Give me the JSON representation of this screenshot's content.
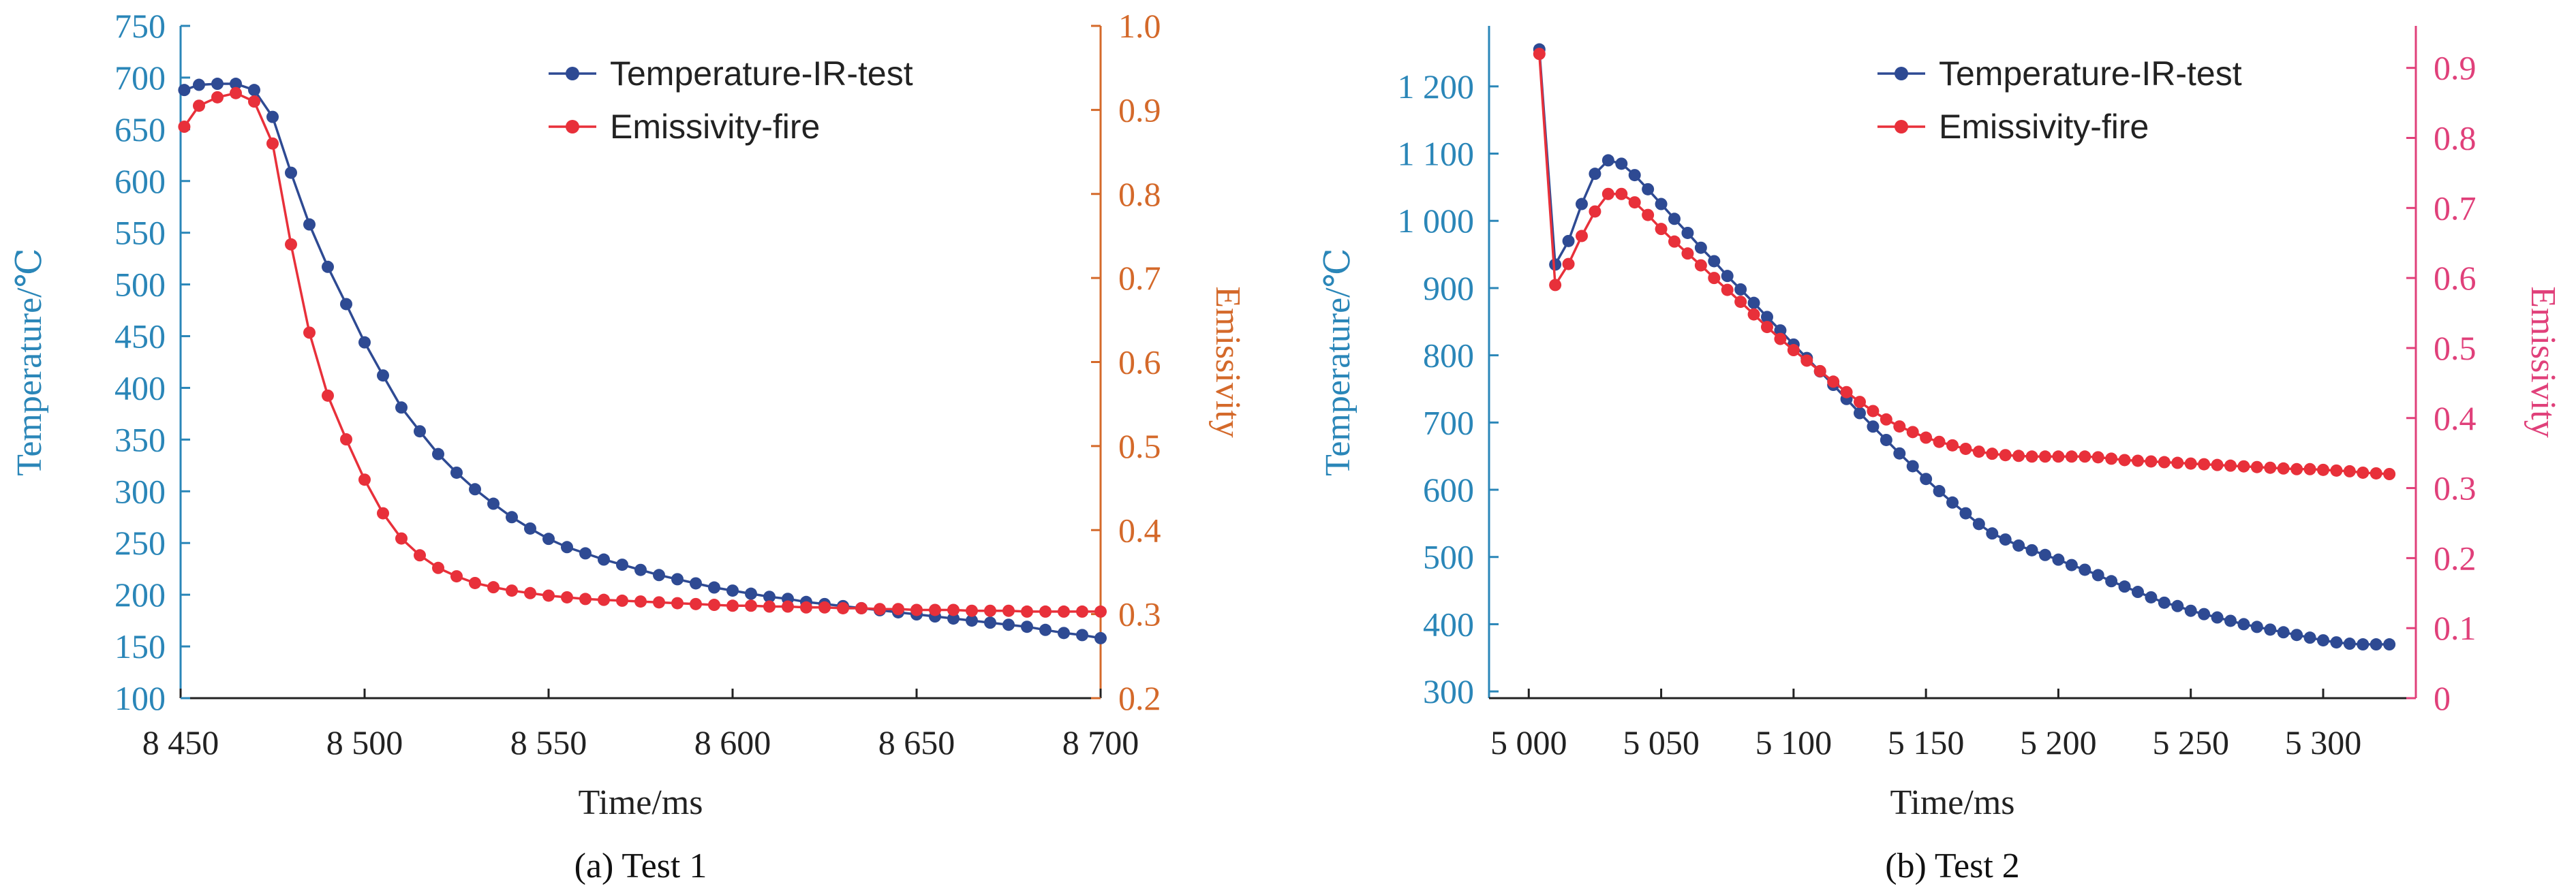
{
  "colors": {
    "temperature": "#2e4a93",
    "emissivity": "#e8303a",
    "left_axis": "#2a86b8",
    "right_axis_a": "#d4692a",
    "right_axis_b": "#e0407a"
  },
  "chart_data": [
    {
      "type": "line",
      "caption": "(a) Test 1",
      "xlabel": "Time/ms",
      "ylabel_left": "Temperature/℃",
      "ylabel_right": "Emissivity",
      "xlim": [
        8450,
        8700
      ],
      "ylim_left": [
        100,
        750
      ],
      "ylim_right": [
        0.2,
        1.0
      ],
      "x_ticks": [
        8450,
        8500,
        8550,
        8600,
        8650,
        8700
      ],
      "x_tick_labels": [
        "8 450",
        "8 500",
        "8 550",
        "8 600",
        "8 650",
        "8 700"
      ],
      "y_left_ticks": [
        100,
        150,
        200,
        250,
        300,
        350,
        400,
        450,
        500,
        550,
        600,
        650,
        700,
        750
      ],
      "y_left_tick_labels": [
        "100",
        "150",
        "200",
        "250",
        "300",
        "350",
        "400",
        "450",
        "500",
        "550",
        "600",
        "650",
        "700",
        "750"
      ],
      "y_right_ticks": [
        0.2,
        0.3,
        0.4,
        0.5,
        0.6,
        0.7,
        0.8,
        0.9,
        1.0
      ],
      "y_right_tick_labels": [
        "0.2",
        "0.3",
        "0.4",
        "0.5",
        "0.6",
        "0.7",
        "0.8",
        "0.9",
        "1.0"
      ],
      "legend_position": "top-right",
      "series": [
        {
          "name": "Temperature-IR-test",
          "axis": "left",
          "x": [
            8451,
            8455,
            8460,
            8465,
            8470,
            8475,
            8480,
            8485,
            8490,
            8495,
            8500,
            8505,
            8510,
            8515,
            8520,
            8525,
            8530,
            8535,
            8540,
            8545,
            8550,
            8555,
            8560,
            8565,
            8570,
            8575,
            8580,
            8585,
            8590,
            8595,
            8600,
            8605,
            8610,
            8615,
            8620,
            8625,
            8630,
            8635,
            8640,
            8645,
            8650,
            8655,
            8660,
            8665,
            8670,
            8675,
            8680,
            8685,
            8690,
            8695,
            8700
          ],
          "y": [
            688,
            693,
            694,
            694,
            688,
            662,
            608,
            558,
            517,
            481,
            444,
            412,
            381,
            358,
            336,
            318,
            302,
            288,
            275,
            264,
            254,
            246,
            240,
            234,
            229,
            224,
            219,
            215,
            211,
            207,
            204,
            201,
            198,
            196,
            193,
            191,
            189,
            187,
            185,
            183,
            181,
            179,
            177,
            175,
            173,
            171,
            169,
            166,
            163,
            161,
            158
          ]
        },
        {
          "name": "Emissivity-fire",
          "axis": "right",
          "x": [
            8451,
            8455,
            8460,
            8465,
            8470,
            8475,
            8480,
            8485,
            8490,
            8495,
            8500,
            8505,
            8510,
            8515,
            8520,
            8525,
            8530,
            8535,
            8540,
            8545,
            8550,
            8555,
            8560,
            8565,
            8570,
            8575,
            8580,
            8585,
            8590,
            8595,
            8600,
            8605,
            8610,
            8615,
            8620,
            8625,
            8630,
            8635,
            8640,
            8645,
            8650,
            8655,
            8660,
            8665,
            8670,
            8675,
            8680,
            8685,
            8690,
            8695,
            8700
          ],
          "y": [
            0.88,
            0.905,
            0.915,
            0.92,
            0.91,
            0.86,
            0.74,
            0.635,
            0.56,
            0.508,
            0.46,
            0.42,
            0.39,
            0.37,
            0.355,
            0.345,
            0.337,
            0.332,
            0.328,
            0.325,
            0.322,
            0.32,
            0.318,
            0.317,
            0.316,
            0.315,
            0.314,
            0.313,
            0.312,
            0.311,
            0.31,
            0.31,
            0.309,
            0.309,
            0.308,
            0.308,
            0.307,
            0.307,
            0.306,
            0.306,
            0.305,
            0.305,
            0.305,
            0.304,
            0.304,
            0.304,
            0.303,
            0.303,
            0.303,
            0.303,
            0.303
          ]
        }
      ]
    },
    {
      "type": "line",
      "caption": "(b) Test 2",
      "xlabel": "Time/ms",
      "ylabel_left": "Temperature/℃",
      "ylabel_right": "Emissivity",
      "xlim": [
        4985,
        5335
      ],
      "ylim_left": [
        290,
        1290
      ],
      "ylim_right": [
        0,
        0.96
      ],
      "x_ticks": [
        5000,
        5050,
        5100,
        5150,
        5200,
        5250,
        5300
      ],
      "x_tick_labels": [
        "5 000",
        "5 050",
        "5 100",
        "5 150",
        "5 200",
        "5 250",
        "5 300"
      ],
      "y_left_ticks": [
        300,
        400,
        500,
        600,
        700,
        800,
        900,
        1000,
        1100,
        1200
      ],
      "y_left_tick_labels": [
        "300",
        "400",
        "500",
        "600",
        "700",
        "800",
        "900",
        "1 000",
        "1 100",
        "1 200"
      ],
      "y_right_ticks": [
        0,
        0.1,
        0.2,
        0.3,
        0.4,
        0.5,
        0.6,
        0.7,
        0.8,
        0.9
      ],
      "y_right_tick_labels": [
        "0",
        "0.1",
        "0.2",
        "0.3",
        "0.4",
        "0.5",
        "0.6",
        "0.7",
        "0.8",
        "0.9"
      ],
      "legend_position": "top-right",
      "series": [
        {
          "name": "Temperature-IR-test",
          "axis": "left",
          "x": [
            5004,
            5010,
            5015,
            5020,
            5025,
            5030,
            5035,
            5040,
            5045,
            5050,
            5055,
            5060,
            5065,
            5070,
            5075,
            5080,
            5085,
            5090,
            5095,
            5100,
            5105,
            5110,
            5115,
            5120,
            5125,
            5130,
            5135,
            5140,
            5145,
            5150,
            5155,
            5160,
            5165,
            5170,
            5175,
            5180,
            5185,
            5190,
            5195,
            5200,
            5205,
            5210,
            5215,
            5220,
            5225,
            5230,
            5235,
            5240,
            5245,
            5250,
            5255,
            5260,
            5265,
            5270,
            5275,
            5280,
            5285,
            5290,
            5295,
            5300,
            5305,
            5310,
            5315,
            5320,
            5325
          ],
          "y": [
            1255,
            935,
            970,
            1025,
            1070,
            1090,
            1085,
            1068,
            1047,
            1025,
            1003,
            982,
            960,
            940,
            918,
            898,
            878,
            857,
            837,
            816,
            796,
            776,
            756,
            735,
            714,
            694,
            674,
            654,
            635,
            616,
            598,
            581,
            565,
            549,
            535,
            526,
            517,
            510,
            503,
            496,
            488,
            481,
            473,
            464,
            456,
            448,
            440,
            432,
            427,
            420,
            415,
            410,
            405,
            400,
            396,
            392,
            388,
            384,
            380,
            376,
            373,
            371,
            370,
            370,
            370
          ]
        },
        {
          "name": "Emissivity-fire",
          "axis": "right",
          "x": [
            5004,
            5010,
            5015,
            5020,
            5025,
            5030,
            5035,
            5040,
            5045,
            5050,
            5055,
            5060,
            5065,
            5070,
            5075,
            5080,
            5085,
            5090,
            5095,
            5100,
            5105,
            5110,
            5115,
            5120,
            5125,
            5130,
            5135,
            5140,
            5145,
            5150,
            5155,
            5160,
            5165,
            5170,
            5175,
            5180,
            5185,
            5190,
            5195,
            5200,
            5205,
            5210,
            5215,
            5220,
            5225,
            5230,
            5235,
            5240,
            5245,
            5250,
            5255,
            5260,
            5265,
            5270,
            5275,
            5280,
            5285,
            5290,
            5295,
            5300,
            5305,
            5310,
            5315,
            5320,
            5325
          ],
          "y": [
            0.92,
            0.59,
            0.62,
            0.66,
            0.695,
            0.72,
            0.72,
            0.708,
            0.69,
            0.67,
            0.652,
            0.635,
            0.618,
            0.6,
            0.583,
            0.566,
            0.548,
            0.53,
            0.513,
            0.497,
            0.482,
            0.467,
            0.452,
            0.437,
            0.423,
            0.41,
            0.398,
            0.388,
            0.38,
            0.372,
            0.366,
            0.361,
            0.356,
            0.352,
            0.349,
            0.347,
            0.346,
            0.345,
            0.345,
            0.345,
            0.345,
            0.345,
            0.344,
            0.342,
            0.34,
            0.339,
            0.338,
            0.337,
            0.336,
            0.335,
            0.334,
            0.333,
            0.332,
            0.331,
            0.33,
            0.329,
            0.328,
            0.327,
            0.327,
            0.326,
            0.325,
            0.324,
            0.322,
            0.321,
            0.32
          ]
        }
      ]
    }
  ]
}
